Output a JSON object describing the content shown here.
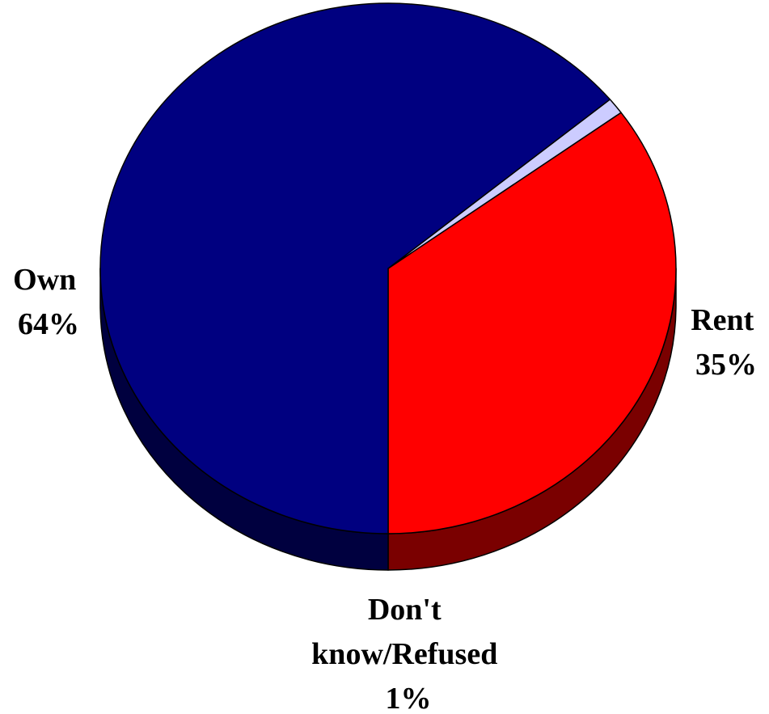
{
  "chart_data": {
    "type": "pie",
    "style": "3d",
    "slices": [
      {
        "label": "Rent",
        "display_lines": [
          "Rent",
          "35%"
        ],
        "value": 35,
        "color": "#ff0000",
        "side_color": "#7a0000"
      },
      {
        "label": "Don't know/Refused",
        "display_lines": [
          "Don't",
          "know/Refused",
          "1%"
        ],
        "value": 1,
        "color": "#ccccff",
        "side_color": "#66667f"
      },
      {
        "label": "Own",
        "display_lines": [
          "Own",
          "64%"
        ],
        "value": 64,
        "color": "#000080",
        "side_color": "#00003f"
      }
    ],
    "legend": "none",
    "data_labels": "outside"
  }
}
